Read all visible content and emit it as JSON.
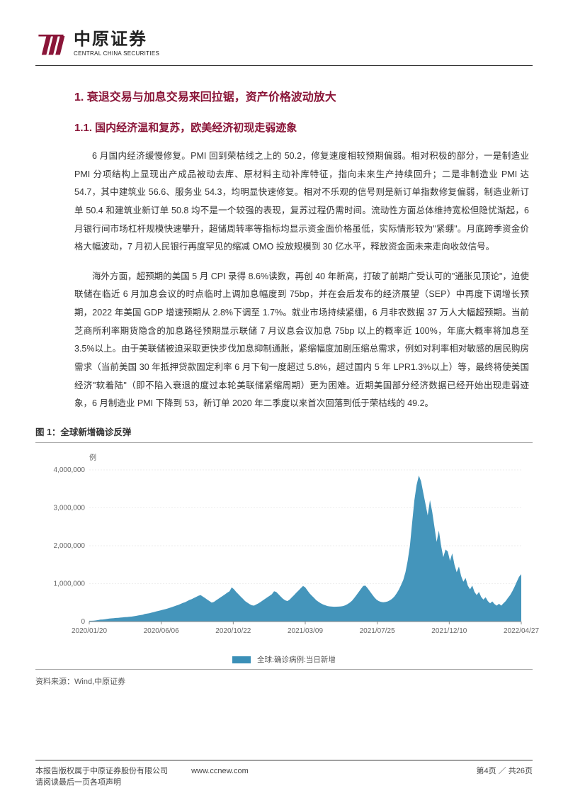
{
  "colors": {
    "brand_maroon": "#8a1538",
    "heading": "#8a1538",
    "text": "#333333",
    "chart_fill": "#3a8fb7",
    "chart_axis": "#888888",
    "chart_grid": "#dddddd"
  },
  "header": {
    "logo_cn": "中原证券",
    "logo_en": "CENTRAL CHINA SECURITIES"
  },
  "h1": "1. 衰退交易与加息交易来回拉锯，资产价格波动放大",
  "h2": "1.1. 国内经济温和复苏，欧美经济初现走弱迹象",
  "para1": "6 月国内经济缓慢修复。PMI 回到荣枯线之上的 50.2，修复速度相较预期偏弱。相对积极的部分，一是制造业 PMI 分项结构上显现出产成品被动去库、原材料主动补库特征，指向未来生产持续回升；二是非制造业 PMI 达 54.7，其中建筑业 56.6、服务业 54.3，均明显快速修复。相对不乐观的信号则是新订单指数修复偏弱，制造业新订单 50.4 和建筑业新订单 50.8 均不是一个较强的表现，复苏过程仍需时间。流动性方面总体维持宽松但隐忧渐起，6 月银行间市场杠杆规模快速攀升，超储周转率等指标均显示资金面价格虽低，实际情形较为\"紧绷\"。月底跨季资金价格大幅波动，7 月初人民银行再度罕见的缩减 OMO 投放规模到 30 亿水平，释放资金面未来走向收敛信号。",
  "para2": "海外方面，超预期的美国 5 月 CPI 录得 8.6%读数，再创 40 年新高，打破了前期广受认可的\"通胀见顶论\"，迫使联储在临近 6 月加息会议的时点临时上调加息幅度到 75bp，并在会后发布的经济展望（SEP）中再度下调增长预期，2022 年美国 GDP 增速预期从 2.8%下调至 1.7%。就业市场持续紧绷，6 月非农数据 37 万人大幅超预期。当前芝商所利率期货隐含的加息路径预期显示联储 7 月议息会议加息 75bp 以上的概率近 100%，年底大概率将加息至 3.5%以上。由于美联储被迫采取更快步伐加息抑制通胀，紧缩幅度加剧压缩总需求，例如对利率相对敏感的居民购房需求（当前美国 30 年抵押贷款固定利率 6 月下旬一度超过 5.8%，超过国内 5 年 LPR1.3%以上）等，最终将使美国经济\"软着陆\"（即不陷入衰退的度过本轮美联储紧缩周期）更为困难。近期美国部分经济数据已经开始出现走弱迹象，6 月制造业 PMI 下降到 53，新订单 2020 年二季度以来首次回落到低于荣枯线的 49.2。",
  "figure": {
    "caption": "图 1：全球新增确诊反弹",
    "unit": "例",
    "legend_label": "全球:确诊病例:当日新增",
    "source": "资料来源：Wind,中原证券",
    "y_axis": {
      "min": 0,
      "max": 4000000,
      "ticks": [
        0,
        1000000,
        2000000,
        3000000,
        4000000
      ],
      "tick_labels": [
        "0",
        "1,000,000",
        "2,000,000",
        "3,000,000",
        "4,000,000"
      ]
    },
    "x_axis": {
      "tick_labels": [
        "2020/01/20",
        "2020/06/06",
        "2020/10/22",
        "2021/03/09",
        "2021/07/25",
        "2021/12/10",
        "2022/04/27"
      ]
    },
    "series": [
      20000,
      20000,
      25000,
      30000,
      40000,
      50000,
      55000,
      60000,
      70000,
      80000,
      85000,
      90000,
      95000,
      100000,
      105000,
      110000,
      115000,
      120000,
      125000,
      130000,
      140000,
      150000,
      160000,
      170000,
      180000,
      200000,
      210000,
      220000,
      235000,
      250000,
      265000,
      280000,
      295000,
      310000,
      325000,
      340000,
      360000,
      380000,
      400000,
      420000,
      440000,
      465000,
      490000,
      510000,
      540000,
      570000,
      590000,
      620000,
      650000,
      680000,
      700000,
      660000,
      620000,
      580000,
      540000,
      500000,
      520000,
      560000,
      600000,
      640000,
      680000,
      720000,
      760000,
      800000,
      900000,
      850000,
      780000,
      720000,
      660000,
      600000,
      540000,
      500000,
      460000,
      430000,
      420000,
      450000,
      480000,
      520000,
      560000,
      600000,
      640000,
      680000,
      720000,
      800000,
      780000,
      720000,
      660000,
      600000,
      560000,
      540000,
      580000,
      640000,
      700000,
      760000,
      820000,
      880000,
      940000,
      900000,
      820000,
      740000,
      680000,
      620000,
      560000,
      520000,
      480000,
      450000,
      430000,
      410000,
      400000,
      395000,
      390000,
      392000,
      395000,
      400000,
      410000,
      430000,
      460000,
      500000,
      550000,
      620000,
      700000,
      780000,
      860000,
      940000,
      950000,
      880000,
      800000,
      720000,
      640000,
      580000,
      540000,
      520000,
      510000,
      515000,
      530000,
      560000,
      600000,
      660000,
      740000,
      840000,
      960000,
      1100000,
      1300000,
      1600000,
      2000000,
      2600000,
      3200000,
      3600000,
      3850000,
      3700000,
      3400000,
      3100000,
      2800000,
      3200000,
      2900000,
      2500000,
      2100000,
      2400000,
      2000000,
      1700000,
      1900000,
      1850000,
      1600000,
      1800000,
      1500000,
      1300000,
      1450000,
      1200000,
      1050000,
      1150000,
      950000,
      850000,
      950000,
      780000,
      700000,
      780000,
      650000,
      580000,
      640000,
      540000,
      480000,
      530000,
      460000,
      420000,
      470000,
      420000,
      480000,
      540000,
      620000,
      700000,
      800000,
      920000,
      1050000,
      1180000,
      1250000
    ]
  },
  "footer": {
    "copyright": "本报告版权属于中原证券股份有限公司",
    "url": "www.ccnew.com",
    "notice": "请阅读最后一页各项声明",
    "page": "第4页 ／ 共26页"
  }
}
